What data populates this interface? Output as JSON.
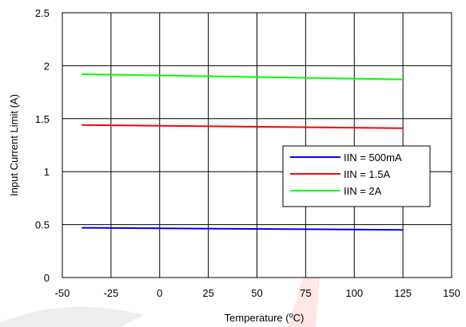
{
  "chart_data": {
    "type": "line",
    "title": "",
    "xlabel": "Temperature (ºC)",
    "xlabel_main": "Temperature (",
    "xlabel_degree": "o",
    "xlabel_unit": "C)",
    "ylabel": "Input Current Limit (A)",
    "xlim": [
      -50,
      150
    ],
    "ylim": [
      0,
      2.5
    ],
    "x_ticks": [
      -50,
      -25,
      0,
      25,
      50,
      75,
      100,
      125,
      150
    ],
    "x_tick_labels": [
      "-50",
      "-25",
      "0",
      "25",
      "50",
      "75",
      "100",
      "125",
      "150"
    ],
    "y_ticks": [
      0,
      0.5,
      1,
      1.5,
      2,
      2.5
    ],
    "y_tick_labels": [
      "0",
      "0.5",
      "1",
      "1.5",
      "2",
      "2.5"
    ],
    "grid": true,
    "legend_position": "center-right",
    "series": [
      {
        "name": "IIN = 500mA",
        "color": "#0000ff",
        "x": [
          -40,
          125
        ],
        "y": [
          0.47,
          0.45
        ]
      },
      {
        "name": "IIN = 1.5A",
        "color": "#ff0000",
        "x": [
          -40,
          125
        ],
        "y": [
          1.44,
          1.41
        ]
      },
      {
        "name": "IIN = 2A",
        "color": "#00ff00",
        "x": [
          -40,
          125
        ],
        "y": [
          1.92,
          1.87
        ]
      }
    ]
  }
}
